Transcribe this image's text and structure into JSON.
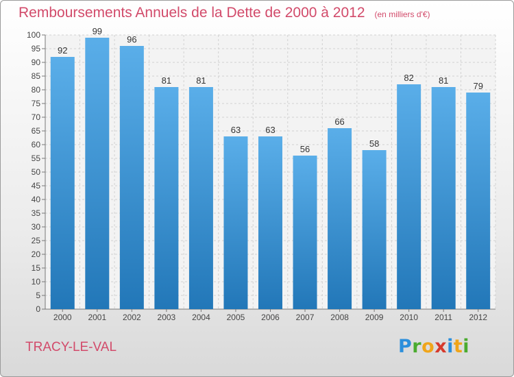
{
  "title": "Remboursements Annuels de la Dette de 2000 à 2012",
  "subtitle": "(en milliers d'€)",
  "city": "TRACY-LE-VAL",
  "logo": {
    "letters": [
      "P",
      "r",
      "o",
      "x",
      "i",
      "t",
      "i"
    ]
  },
  "colors": {
    "bar_top": "#5aaee9",
    "bar_bottom": "#2277b8",
    "title": "#d24a6a"
  },
  "chart_data": {
    "type": "bar",
    "categories": [
      "2000",
      "2001",
      "2002",
      "2003",
      "2004",
      "2005",
      "2006",
      "2007",
      "2008",
      "2009",
      "2010",
      "2011",
      "2012"
    ],
    "values": [
      92,
      99,
      96,
      81,
      81,
      63,
      63,
      56,
      66,
      58,
      82,
      81,
      79
    ],
    "title": "Remboursements Annuels de la Dette de 2000 à 2012",
    "ylim": [
      0,
      100
    ],
    "yticks": [
      0,
      5,
      10,
      15,
      20,
      25,
      30,
      35,
      40,
      45,
      50,
      55,
      60,
      65,
      70,
      75,
      80,
      85,
      90,
      95,
      100
    ],
    "grid": true,
    "data_labels": true
  }
}
